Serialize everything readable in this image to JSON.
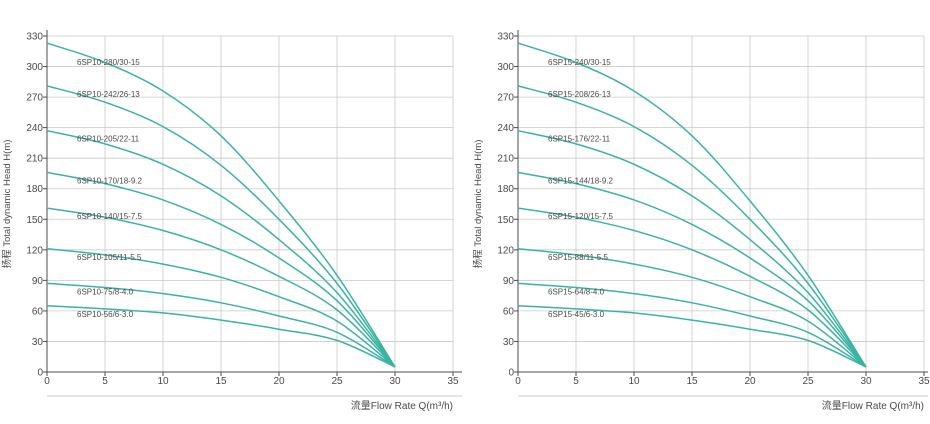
{
  "colors": {
    "curve": "#3bb3a3",
    "axis": "#4d4d4d",
    "grid": "#c9c9c9",
    "text": "#4a4a4a"
  },
  "chart_data": [
    {
      "type": "line",
      "title": "",
      "xlabel": "流量Flow Rate Q(m³/h)",
      "ylabel": "扬程 Total dynamic Head H(m)",
      "xlim": [
        0,
        35
      ],
      "ylim": [
        0,
        330
      ],
      "xticks": [
        0,
        5,
        10,
        15,
        20,
        25,
        30,
        35
      ],
      "yticks": [
        0,
        30,
        60,
        90,
        120,
        150,
        180,
        210,
        240,
        270,
        300,
        330
      ],
      "grid": true,
      "series": [
        {
          "name": "6SP10-280/30-15",
          "x": [
            0,
            5,
            10,
            15,
            20,
            25,
            30
          ],
          "y": [
            323,
            304,
            276,
            232,
            168,
            95,
            5
          ]
        },
        {
          "name": "6SP10-242/26-13",
          "x": [
            0,
            5,
            10,
            15,
            20,
            25,
            30
          ],
          "y": [
            281,
            265,
            241,
            203,
            150,
            87,
            5
          ]
        },
        {
          "name": "6SP10-205/22-11",
          "x": [
            0,
            5,
            10,
            15,
            20,
            25,
            30
          ],
          "y": [
            237,
            224,
            204,
            173,
            130,
            78,
            5
          ]
        },
        {
          "name": "6SP10-170/18-9.2",
          "x": [
            0,
            5,
            10,
            15,
            20,
            25,
            30
          ],
          "y": [
            196,
            185,
            169,
            145,
            112,
            70,
            5
          ]
        },
        {
          "name": "6SP10-140/15-7.5",
          "x": [
            0,
            5,
            10,
            15,
            20,
            25,
            30
          ],
          "y": [
            161,
            152,
            139,
            120,
            94,
            61,
            5
          ]
        },
        {
          "name": "6SP10-105/11-5.5",
          "x": [
            0,
            5,
            10,
            15,
            20,
            25,
            30
          ],
          "y": [
            121,
            115,
            106,
            93,
            74,
            50,
            5
          ]
        },
        {
          "name": "6SP10-75/8-4.0",
          "x": [
            0,
            5,
            10,
            15,
            20,
            25,
            30
          ],
          "y": [
            87,
            83,
            77,
            68,
            55,
            39,
            5
          ]
        },
        {
          "name": "6SP10-56/6-3.0",
          "x": [
            0,
            5,
            10,
            15,
            20,
            25,
            30
          ],
          "y": [
            65,
            62,
            58,
            51,
            42,
            31,
            5
          ]
        }
      ]
    },
    {
      "type": "line",
      "title": "",
      "xlabel": "流量Flow Rate Q(m³/h)",
      "ylabel": "扬程 Total dynamic Head H(m)",
      "xlim": [
        0,
        35
      ],
      "ylim": [
        0,
        330
      ],
      "xticks": [
        0,
        5,
        10,
        15,
        20,
        25,
        30,
        35
      ],
      "yticks": [
        0,
        30,
        60,
        90,
        120,
        150,
        180,
        210,
        240,
        270,
        300,
        330
      ],
      "grid": true,
      "series": [
        {
          "name": "6SP15-240/30-15",
          "x": [
            0,
            5,
            10,
            15,
            20,
            25,
            30
          ],
          "y": [
            323,
            304,
            276,
            232,
            168,
            95,
            5
          ]
        },
        {
          "name": "6SP15-208/26-13",
          "x": [
            0,
            5,
            10,
            15,
            20,
            25,
            30
          ],
          "y": [
            281,
            265,
            241,
            203,
            150,
            87,
            5
          ]
        },
        {
          "name": "6SP15-176/22-11",
          "x": [
            0,
            5,
            10,
            15,
            20,
            25,
            30
          ],
          "y": [
            237,
            224,
            204,
            173,
            130,
            78,
            5
          ]
        },
        {
          "name": "6SP15-144/18-9.2",
          "x": [
            0,
            5,
            10,
            15,
            20,
            25,
            30
          ],
          "y": [
            196,
            185,
            169,
            145,
            112,
            70,
            5
          ]
        },
        {
          "name": "6SP15-120/15-7.5",
          "x": [
            0,
            5,
            10,
            15,
            20,
            25,
            30
          ],
          "y": [
            161,
            152,
            139,
            120,
            94,
            61,
            5
          ]
        },
        {
          "name": "6SP15-88/11-5.5",
          "x": [
            0,
            5,
            10,
            15,
            20,
            25,
            30
          ],
          "y": [
            121,
            115,
            106,
            93,
            74,
            50,
            5
          ]
        },
        {
          "name": "6SP15-64/8-4.0",
          "x": [
            0,
            5,
            10,
            15,
            20,
            25,
            30
          ],
          "y": [
            87,
            83,
            77,
            68,
            55,
            39,
            5
          ]
        },
        {
          "name": "6SP15-45/6-3.0",
          "x": [
            0,
            5,
            10,
            15,
            20,
            25,
            30
          ],
          "y": [
            65,
            62,
            58,
            51,
            42,
            31,
            5
          ]
        }
      ]
    }
  ]
}
